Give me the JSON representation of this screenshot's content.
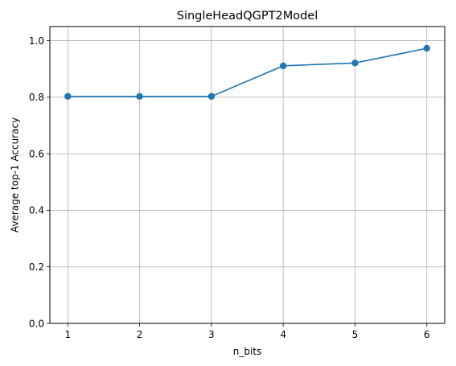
{
  "chart_data": {
    "type": "line",
    "title": "SingleHeadQGPT2Model",
    "xlabel": "n_bits",
    "ylabel": "Average top-1 Accuracy",
    "x": [
      1,
      2,
      3,
      4,
      5,
      6
    ],
    "series": [
      {
        "values": [
          0.803,
          0.803,
          0.803,
          0.911,
          0.921,
          0.973
        ]
      }
    ],
    "xlim": [
      0.75,
      6.25
    ],
    "ylim": [
      0.0,
      1.05
    ],
    "xticks": [
      "1",
      "2",
      "3",
      "4",
      "5",
      "6"
    ],
    "yticks": [
      "0.0",
      "0.2",
      "0.4",
      "0.6",
      "0.8",
      "1.0"
    ],
    "grid": true,
    "line_color": "#1f77b4",
    "marker": "circle"
  }
}
